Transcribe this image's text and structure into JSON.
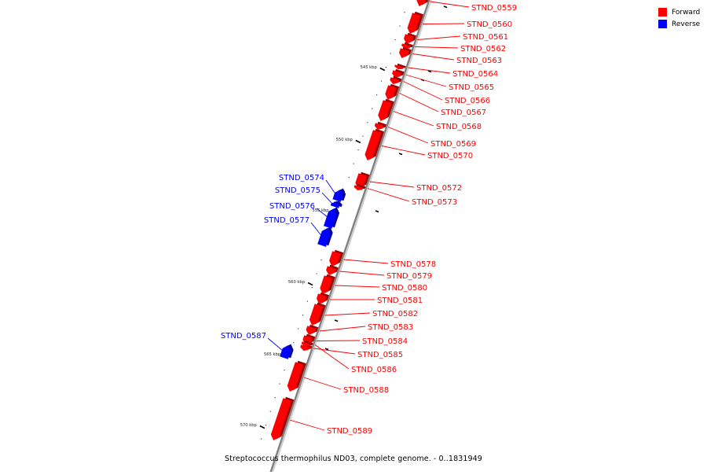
{
  "legend": {
    "items": [
      {
        "label": "Forward",
        "color": "#ff0000"
      },
      {
        "label": "Reverse",
        "color": "#0000ff"
      }
    ]
  },
  "caption": "Streptococcus thermophilus ND03, complete genome. - 0..1831949",
  "colors": {
    "forward": "#ff0000",
    "reverse": "#0000ff",
    "backbone": "#808080",
    "tick": "#000000"
  },
  "ticks": [
    {
      "label": "545 kbp"
    },
    {
      "label": "550 kbp"
    },
    {
      "label": "555 kbp"
    },
    {
      "label": "560 kbp"
    },
    {
      "label": "565 kbp"
    },
    {
      "label": "570 kbp"
    }
  ],
  "genes": [
    {
      "name": "STND_0559",
      "strand": "forward"
    },
    {
      "name": "STND_0560",
      "strand": "forward"
    },
    {
      "name": "STND_0561",
      "strand": "forward"
    },
    {
      "name": "STND_0562",
      "strand": "forward"
    },
    {
      "name": "STND_0563",
      "strand": "forward"
    },
    {
      "name": "STND_0564",
      "strand": "forward"
    },
    {
      "name": "STND_0565",
      "strand": "forward"
    },
    {
      "name": "STND_0566",
      "strand": "forward"
    },
    {
      "name": "STND_0567",
      "strand": "forward"
    },
    {
      "name": "STND_0568",
      "strand": "forward"
    },
    {
      "name": "STND_0569",
      "strand": "forward"
    },
    {
      "name": "STND_0570",
      "strand": "forward"
    },
    {
      "name": "STND_0572",
      "strand": "forward"
    },
    {
      "name": "STND_0573",
      "strand": "forward"
    },
    {
      "name": "STND_0574",
      "strand": "reverse"
    },
    {
      "name": "STND_0575",
      "strand": "reverse"
    },
    {
      "name": "STND_0576",
      "strand": "reverse"
    },
    {
      "name": "STND_0577",
      "strand": "reverse"
    },
    {
      "name": "STND_0578",
      "strand": "forward"
    },
    {
      "name": "STND_0579",
      "strand": "forward"
    },
    {
      "name": "STND_0580",
      "strand": "forward"
    },
    {
      "name": "STND_0581",
      "strand": "forward"
    },
    {
      "name": "STND_0582",
      "strand": "forward"
    },
    {
      "name": "STND_0583",
      "strand": "forward"
    },
    {
      "name": "STND_0584",
      "strand": "forward"
    },
    {
      "name": "STND_0585",
      "strand": "forward"
    },
    {
      "name": "STND_0586",
      "strand": "forward"
    },
    {
      "name": "STND_0587",
      "strand": "reverse"
    },
    {
      "name": "STND_0588",
      "strand": "forward"
    },
    {
      "name": "STND_0589",
      "strand": "forward"
    }
  ]
}
